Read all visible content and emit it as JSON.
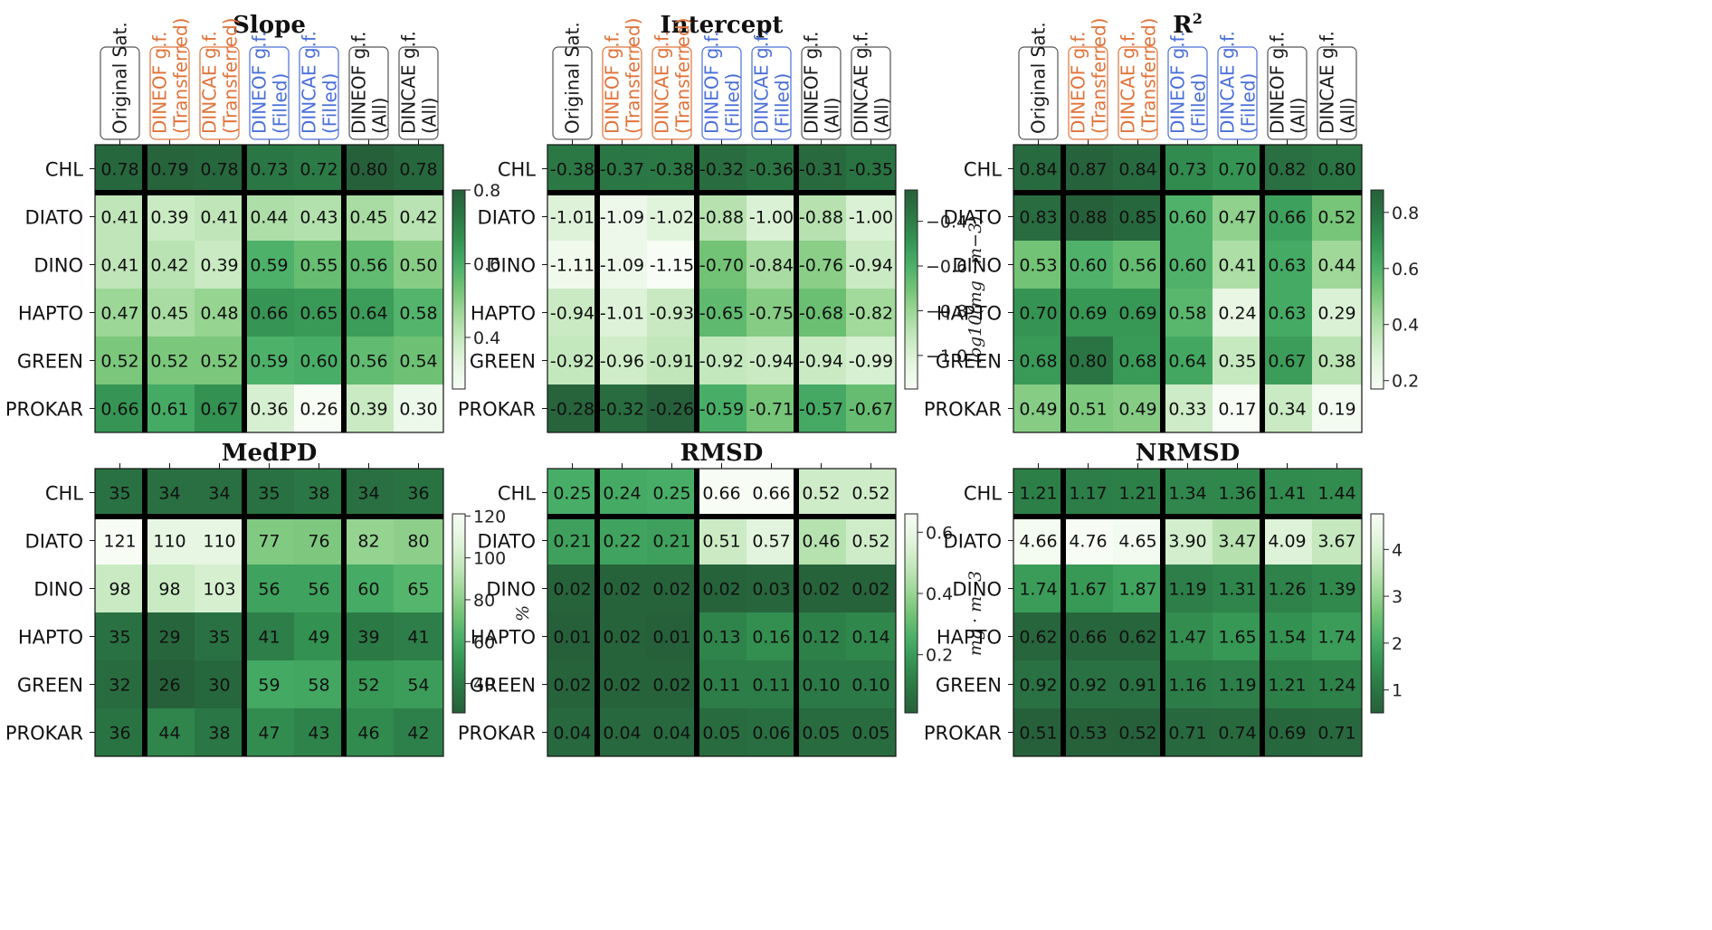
{
  "colors": {
    "black_group": "#1a1a1a",
    "orange_group": "#e0733a",
    "blue_group": "#4a6fd8",
    "cmap_light": "#f7fcf5",
    "cmap_dark": "#2d6b45"
  },
  "column_headers": [
    {
      "lines": [
        "Original Sat."
      ],
      "group": "black"
    },
    {
      "lines": [
        "DINEOF g.f.",
        "(Transferred)"
      ],
      "group": "orange"
    },
    {
      "lines": [
        "DINCAE g.f.",
        "(Transferred)"
      ],
      "group": "orange"
    },
    {
      "lines": [
        "DINEOF g.f.",
        "(Filled)"
      ],
      "group": "blue"
    },
    {
      "lines": [
        "DINCAE g.f.",
        "(Filled)"
      ],
      "group": "blue"
    },
    {
      "lines": [
        "DINEOF g.f.",
        "(All)"
      ],
      "group": "black"
    },
    {
      "lines": [
        "DINCAE g.f.",
        "(All)"
      ],
      "group": "black"
    }
  ],
  "row_labels": [
    "CHL",
    "DIATO",
    "DINO",
    "HAPTO",
    "GREEN",
    "PROKAR"
  ],
  "chart_data": [
    {
      "type": "heatmap",
      "title": "Slope",
      "title_sup": "",
      "colorbar": {
        "min": 0.26,
        "max": 0.8,
        "ticks": [
          "0.4",
          "0.6",
          "0.8"
        ],
        "tick_values": [
          0.4,
          0.6,
          0.8
        ],
        "label": "",
        "reverse": false
      },
      "values": [
        [
          "0.78",
          "0.79",
          "0.78",
          "0.73",
          "0.72",
          "0.80",
          "0.78"
        ],
        [
          "0.41",
          "0.39",
          "0.41",
          "0.44",
          "0.43",
          "0.45",
          "0.42"
        ],
        [
          "0.41",
          "0.42",
          "0.39",
          "0.59",
          "0.55",
          "0.56",
          "0.50"
        ],
        [
          "0.47",
          "0.45",
          "0.48",
          "0.66",
          "0.65",
          "0.64",
          "0.58"
        ],
        [
          "0.52",
          "0.52",
          "0.52",
          "0.59",
          "0.60",
          "0.56",
          "0.54"
        ],
        [
          "0.66",
          "0.61",
          "0.67",
          "0.36",
          "0.26",
          "0.39",
          "0.30"
        ]
      ]
    },
    {
      "type": "heatmap",
      "title": "Intercept",
      "title_sup": "",
      "colorbar": {
        "min": -1.15,
        "max": -0.26,
        "ticks": [
          "−1.0",
          "−0.8",
          "−0.6",
          "−0.4"
        ],
        "tick_values": [
          -1.0,
          -0.8,
          -0.6,
          -0.4
        ],
        "label": "log10(mg · m−3)",
        "reverse": false
      },
      "values": [
        [
          "-0.38",
          "-0.37",
          "-0.38",
          "-0.32",
          "-0.36",
          "-0.31",
          "-0.35"
        ],
        [
          "-1.01",
          "-1.09",
          "-1.02",
          "-0.88",
          "-1.00",
          "-0.88",
          "-1.00"
        ],
        [
          "-1.11",
          "-1.09",
          "-1.15",
          "-0.70",
          "-0.84",
          "-0.76",
          "-0.94"
        ],
        [
          "-0.94",
          "-1.01",
          "-0.93",
          "-0.65",
          "-0.75",
          "-0.68",
          "-0.82"
        ],
        [
          "-0.92",
          "-0.96",
          "-0.91",
          "-0.92",
          "-0.94",
          "-0.94",
          "-0.99"
        ],
        [
          "-0.28",
          "-0.32",
          "-0.26",
          "-0.59",
          "-0.71",
          "-0.57",
          "-0.67"
        ]
      ]
    },
    {
      "type": "heatmap",
      "title": "R",
      "title_sup": "2",
      "colorbar": {
        "min": 0.17,
        "max": 0.88,
        "ticks": [
          "0.2",
          "0.4",
          "0.6",
          "0.8"
        ],
        "tick_values": [
          0.2,
          0.4,
          0.6,
          0.8
        ],
        "label": "",
        "reverse": false
      },
      "values": [
        [
          "0.84",
          "0.87",
          "0.84",
          "0.73",
          "0.70",
          "0.82",
          "0.80"
        ],
        [
          "0.83",
          "0.88",
          "0.85",
          "0.60",
          "0.47",
          "0.66",
          "0.52"
        ],
        [
          "0.53",
          "0.60",
          "0.56",
          "0.60",
          "0.41",
          "0.63",
          "0.44"
        ],
        [
          "0.70",
          "0.69",
          "0.69",
          "0.58",
          "0.24",
          "0.63",
          "0.29"
        ],
        [
          "0.68",
          "0.80",
          "0.68",
          "0.64",
          "0.35",
          "0.67",
          "0.38"
        ],
        [
          "0.49",
          "0.51",
          "0.49",
          "0.33",
          "0.17",
          "0.34",
          "0.19"
        ]
      ]
    },
    {
      "type": "heatmap",
      "title": "MedPD",
      "title_sup": "",
      "colorbar": {
        "min": 26,
        "max": 121,
        "ticks": [
          "40",
          "60",
          "80",
          "100",
          "120"
        ],
        "tick_values": [
          40,
          60,
          80,
          100,
          120
        ],
        "label": "%",
        "reverse": true
      },
      "values": [
        [
          "35",
          "34",
          "34",
          "35",
          "38",
          "34",
          "36"
        ],
        [
          "121",
          "110",
          "110",
          "77",
          "76",
          "82",
          "80"
        ],
        [
          "98",
          "98",
          "103",
          "56",
          "56",
          "60",
          "65"
        ],
        [
          "35",
          "29",
          "35",
          "41",
          "49",
          "39",
          "41"
        ],
        [
          "32",
          "26",
          "30",
          "59",
          "58",
          "52",
          "54"
        ],
        [
          "36",
          "44",
          "38",
          "47",
          "43",
          "46",
          "42"
        ]
      ]
    },
    {
      "type": "heatmap",
      "title": "RMSD",
      "title_sup": "",
      "colorbar": {
        "min": 0.01,
        "max": 0.66,
        "ticks": [
          "0.2",
          "0.4",
          "0.6"
        ],
        "tick_values": [
          0.2,
          0.4,
          0.6
        ],
        "label": "mg · m−3",
        "reverse": true
      },
      "values": [
        [
          "0.25",
          "0.24",
          "0.25",
          "0.66",
          "0.66",
          "0.52",
          "0.52"
        ],
        [
          "0.21",
          "0.22",
          "0.21",
          "0.51",
          "0.57",
          "0.46",
          "0.52"
        ],
        [
          "0.02",
          "0.02",
          "0.02",
          "0.02",
          "0.03",
          "0.02",
          "0.02"
        ],
        [
          "0.01",
          "0.02",
          "0.01",
          "0.13",
          "0.16",
          "0.12",
          "0.14"
        ],
        [
          "0.02",
          "0.02",
          "0.02",
          "0.11",
          "0.11",
          "0.10",
          "0.10"
        ],
        [
          "0.04",
          "0.04",
          "0.04",
          "0.05",
          "0.06",
          "0.05",
          "0.05"
        ]
      ]
    },
    {
      "type": "heatmap",
      "title": "NRMSD",
      "title_sup": "",
      "colorbar": {
        "min": 0.51,
        "max": 4.76,
        "ticks": [
          "1",
          "2",
          "3",
          "4"
        ],
        "tick_values": [
          1,
          2,
          3,
          4
        ],
        "label": "",
        "reverse": true
      },
      "values": [
        [
          "1.21",
          "1.17",
          "1.21",
          "1.34",
          "1.36",
          "1.41",
          "1.44"
        ],
        [
          "4.66",
          "4.76",
          "4.65",
          "3.90",
          "3.47",
          "4.09",
          "3.67"
        ],
        [
          "1.74",
          "1.67",
          "1.87",
          "1.19",
          "1.31",
          "1.26",
          "1.39"
        ],
        [
          "0.62",
          "0.66",
          "0.62",
          "1.47",
          "1.65",
          "1.54",
          "1.74"
        ],
        [
          "0.92",
          "0.92",
          "0.91",
          "1.16",
          "1.19",
          "1.21",
          "1.24"
        ],
        [
          "0.51",
          "0.53",
          "0.52",
          "0.71",
          "0.74",
          "0.69",
          "0.71"
        ]
      ]
    }
  ]
}
